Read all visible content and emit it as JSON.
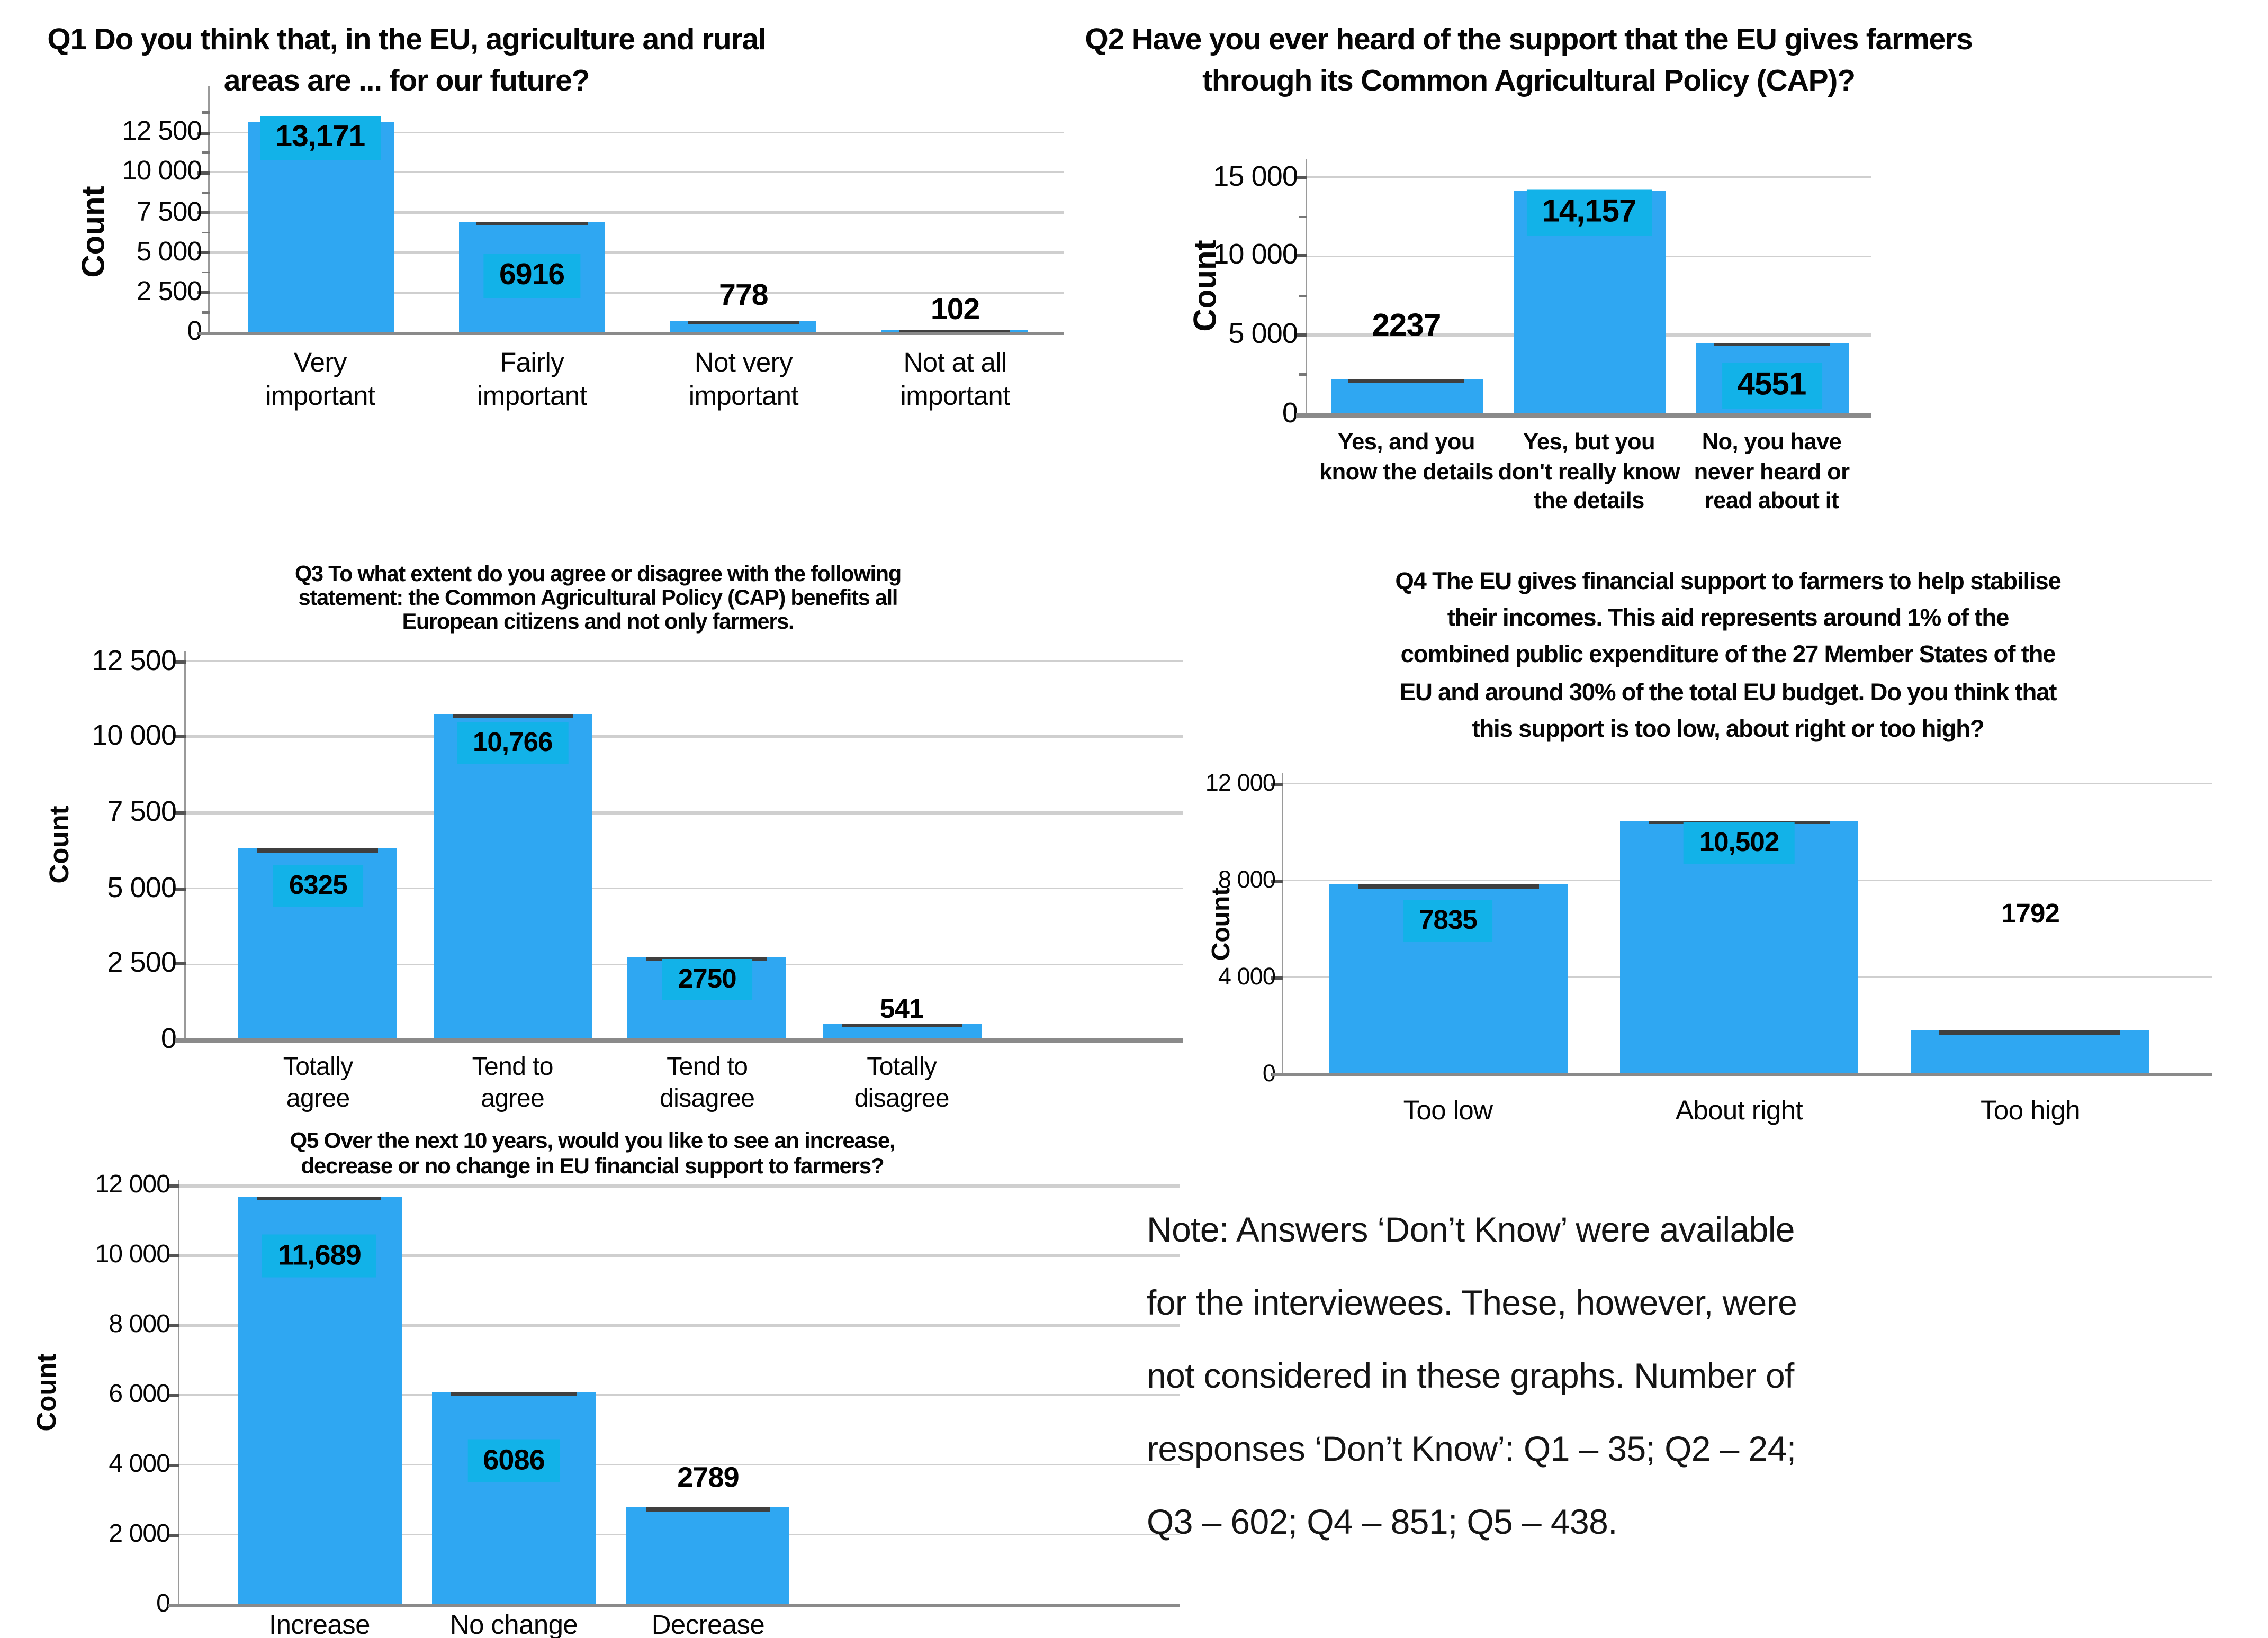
{
  "colors": {
    "bar_fill": "#2fa7f2",
    "value_patch": "#12b2e8",
    "bar_cap": "#3f3f3f",
    "gridline": "#cfcfcf",
    "axis": "#8a8a8a",
    "text": "#060606"
  },
  "note": {
    "lines": [
      "Note: Answers ‘Don’t Know’ were available",
      "for the interviewees. These, however, were",
      "not considered in these graphs. Number of",
      "responses ‘Don’t Know’: Q1 – 35; Q2 – 24;",
      "Q3 – 602; Q4 – 851; Q5 – 438."
    ]
  },
  "chart_data": [
    {
      "id": "Q1",
      "type": "bar",
      "title_lines": [
        "Q1 Do you think that, in the EU, agriculture and rural",
        "areas are ... for our future?"
      ],
      "title": "Q1 Do you think that, in the EU, agriculture and rural areas are ... for our future?",
      "ylabel": "Count",
      "xlabel": "",
      "categories": [
        "Very important",
        "Fairly important",
        "Not very important",
        "Not at all important"
      ],
      "category_lines": [
        [
          "Very",
          "important"
        ],
        [
          "Fairly",
          "important"
        ],
        [
          "Not very",
          "important"
        ],
        [
          "Not at all",
          "important"
        ]
      ],
      "values": [
        13171,
        6916,
        778,
        102
      ],
      "value_labels": [
        "13,171",
        "6916",
        "778",
        "102"
      ],
      "ytick_values": [
        0,
        2500,
        5000,
        7500,
        10000,
        12500
      ],
      "ytick_labels": [
        "0",
        "2 500",
        "5 000",
        "7 500",
        "10 000",
        "12 500"
      ],
      "ylim": [
        0,
        15400
      ],
      "grid": true,
      "legend": "none"
    },
    {
      "id": "Q2",
      "type": "bar",
      "title_lines": [
        "Q2 Have you ever heard of the support that the EU gives farmers",
        "through its Common Agricultural Policy (CAP)?"
      ],
      "title": "Q2 Have you ever heard of the support that the EU gives farmers through its Common Agricultural Policy (CAP)?",
      "ylabel": "Count",
      "xlabel": "",
      "categories": [
        "Yes, and you know the details",
        "Yes, but you don't really know the details",
        "No, you have never heard or read about it"
      ],
      "category_lines": [
        [
          "Yes, and you",
          "know the details"
        ],
        [
          "Yes, but you",
          "don't really know",
          "the details"
        ],
        [
          "No, you have",
          "never heard or",
          "read about it"
        ]
      ],
      "values": [
        2237,
        14157,
        4551
      ],
      "value_labels": [
        "2237",
        "14,157",
        "4551"
      ],
      "ytick_values": [
        0,
        5000,
        10000,
        15000
      ],
      "ytick_labels": [
        "0",
        "5 000",
        "10 000",
        "15 000"
      ],
      "ylim": [
        0,
        16200
      ],
      "grid": true,
      "legend": "none"
    },
    {
      "id": "Q3",
      "type": "bar",
      "title_lines": [
        "Q3 To what extent do you agree or disagree with the following",
        "statement: the Common Agricultural Policy (CAP) benefits all",
        "European citizens and not only farmers."
      ],
      "title": "Q3 To what extent do you agree or disagree with the following statement: the Common Agricultural Policy (CAP) benefits all European citizens and not only farmers.",
      "ylabel": "Count",
      "xlabel": "",
      "categories": [
        "Totally agree",
        "Tend to agree",
        "Tend to disagree",
        "Totally disagree"
      ],
      "category_lines": [
        [
          "Totally",
          "agree"
        ],
        [
          "Tend to",
          "agree"
        ],
        [
          "Tend to",
          "disagree"
        ],
        [
          "Totally",
          "disagree"
        ]
      ],
      "values": [
        6325,
        10766,
        2750,
        541
      ],
      "value_labels": [
        "6325",
        "10,766",
        "2750",
        "541"
      ],
      "ytick_values": [
        0,
        2500,
        5000,
        7500,
        10000,
        12500
      ],
      "ytick_labels": [
        "0",
        "2 500",
        "5 000",
        "7 500",
        "10 000",
        "12 500"
      ],
      "ylim": [
        0,
        12850
      ],
      "grid": true,
      "legend": "none"
    },
    {
      "id": "Q4",
      "type": "bar",
      "title_lines": [
        "Q4 The EU gives financial support to farmers to help stabilise",
        "their incomes. This aid represents around 1% of the",
        "combined public expenditure of the 27 Member States of the",
        "EU and around 30% of the total EU budget. Do you think that",
        "this support is too low, about right or too high?"
      ],
      "title": "Q4 The EU gives financial support to farmers to help stabilise their incomes. This aid represents around 1% of the combined public expenditure of the 27 Member States of the EU and around 30% of the total EU budget. Do you think that this support is too low, about right or too high?",
      "ylabel": "Count",
      "xlabel": "",
      "categories": [
        "Too low",
        "About right",
        "Too high"
      ],
      "category_lines": [
        [
          "Too low"
        ],
        [
          "About right"
        ],
        [
          "Too high"
        ]
      ],
      "values": [
        7835,
        10502,
        1792
      ],
      "value_labels": [
        "7835",
        "10,502",
        "1792"
      ],
      "ytick_values": [
        0,
        4000,
        8000,
        12000
      ],
      "ytick_labels": [
        "0",
        "4 000",
        "8 000",
        "12 000"
      ],
      "ylim": [
        0,
        12450
      ],
      "grid": true,
      "legend": "none"
    },
    {
      "id": "Q5",
      "type": "bar",
      "title_lines": [
        "Q5  Over the next 10 years, would you like to see an increase,",
        "decrease or no change in EU financial support to farmers?"
      ],
      "title": "Q5 Over the next 10 years, would you like to see an increase, decrease or no change in EU financial support to farmers?",
      "ylabel": "Count",
      "xlabel": "",
      "categories": [
        "Increase",
        "No change",
        "Decrease"
      ],
      "category_lines": [
        [
          "Increase"
        ],
        [
          "No change"
        ],
        [
          "Decrease"
        ]
      ],
      "values": [
        11689,
        6086,
        2789
      ],
      "value_labels": [
        "11,689",
        "6086",
        "2789"
      ],
      "ytick_values": [
        0,
        2000,
        4000,
        6000,
        8000,
        10000,
        12000
      ],
      "ytick_labels": [
        "0",
        "2 000",
        "4 000",
        "6 000",
        "8 000",
        "10 000",
        "12 000"
      ],
      "ylim": [
        0,
        12200
      ],
      "grid": true,
      "legend": "none"
    }
  ]
}
